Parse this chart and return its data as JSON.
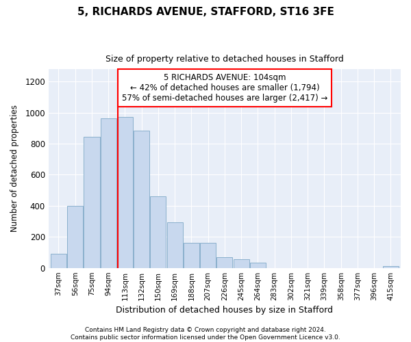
{
  "title1": "5, RICHARDS AVENUE, STAFFORD, ST16 3FE",
  "title2": "Size of property relative to detached houses in Stafford",
  "xlabel": "Distribution of detached houses by size in Stafford",
  "ylabel": "Number of detached properties",
  "bar_color": "#c8d8ee",
  "bar_edge_color": "#8ab0cc",
  "categories": [
    "37sqm",
    "56sqm",
    "75sqm",
    "94sqm",
    "113sqm",
    "132sqm",
    "150sqm",
    "169sqm",
    "188sqm",
    "207sqm",
    "226sqm",
    "245sqm",
    "264sqm",
    "283sqm",
    "302sqm",
    "321sqm",
    "339sqm",
    "358sqm",
    "377sqm",
    "396sqm",
    "415sqm"
  ],
  "values": [
    90,
    400,
    845,
    965,
    970,
    885,
    460,
    295,
    160,
    160,
    70,
    55,
    35,
    0,
    0,
    0,
    0,
    0,
    0,
    0,
    10
  ],
  "ylim": [
    0,
    1280
  ],
  "yticks": [
    0,
    200,
    400,
    600,
    800,
    1000,
    1200
  ],
  "red_line_x": 3.58,
  "annotation_text": "5 RICHARDS AVENUE: 104sqm\n← 42% of detached houses are smaller (1,794)\n57% of semi-detached houses are larger (2,417) →",
  "footer1": "Contains HM Land Registry data © Crown copyright and database right 2024.",
  "footer2": "Contains public sector information licensed under the Open Government Licence v3.0.",
  "background_color": "#ffffff",
  "plot_bg_color": "#e8eef8"
}
